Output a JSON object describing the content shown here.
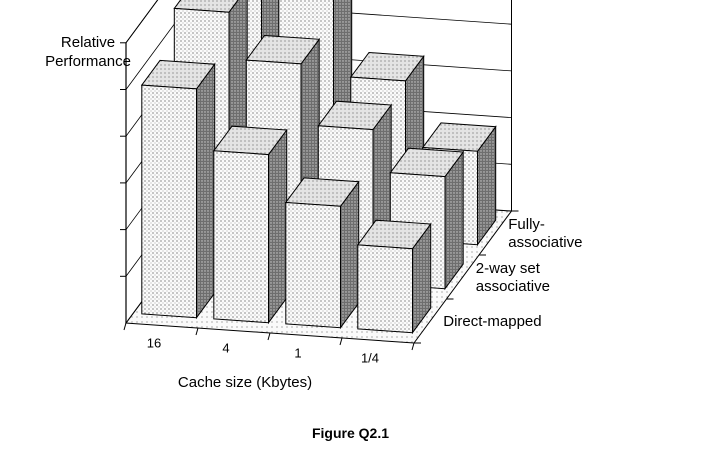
{
  "figure_caption": "Figure Q2.1",
  "chart_data": {
    "type": "bar",
    "subtype": "3d-grouped-bar",
    "title": "",
    "zlabel": "Relative Performance",
    "xlabel": "Cache size (Kbytes)",
    "categories": [
      "16",
      "4",
      "1",
      "1/4"
    ],
    "depth_labels": [
      "Direct-mapped",
      "2-way set associative",
      "Fully-associative"
    ],
    "depth_labels_display": [
      [
        "Direct-mapped"
      ],
      [
        "2-way set",
        "associative"
      ],
      [
        "Fully-",
        "associative"
      ]
    ],
    "series": [
      {
        "name": "Direct-mapped",
        "values": [
          4.9,
          3.6,
          2.6,
          1.8
        ]
      },
      {
        "name": "2-way set associative",
        "values": [
          5.6,
          4.6,
          3.3,
          2.4
        ]
      },
      {
        "name": "Fully-associative",
        "values": [
          6.0,
          5.7,
          3.4,
          2.0
        ]
      }
    ],
    "ylim": [
      0,
      6
    ],
    "y_ticks": 6,
    "y_tick_labels_shown": false,
    "grid": true,
    "colors": {
      "front_face": "#f2f2f2",
      "side_face": "#777777",
      "top_face": "#d9d9d9",
      "floor": "#f4f4f4",
      "axis": "#000000"
    }
  }
}
